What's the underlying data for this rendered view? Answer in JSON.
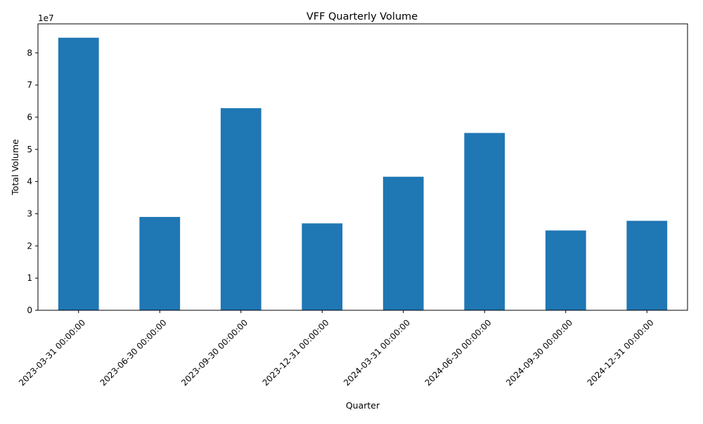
{
  "chart_data": {
    "type": "bar",
    "title": "VFF Quarterly Volume",
    "xlabel": "Quarter",
    "ylabel": "Total Volume",
    "scale_label": "1e7",
    "categories": [
      "2023-03-31 00:00:00",
      "2023-06-30 00:00:00",
      "2023-09-30 00:00:00",
      "2023-12-31 00:00:00",
      "2024-03-31 00:00:00",
      "2024-06-30 00:00:00",
      "2024-09-30 00:00:00",
      "2024-12-31 00:00:00"
    ],
    "values": [
      84700000,
      29000000,
      62800000,
      27000000,
      41500000,
      55100000,
      24800000,
      27800000
    ],
    "ylim": [
      0,
      89000000
    ],
    "yticks": [
      0,
      10000000,
      20000000,
      30000000,
      40000000,
      50000000,
      60000000,
      70000000,
      80000000
    ],
    "ytick_labels": [
      "0",
      "1",
      "2",
      "3",
      "4",
      "5",
      "6",
      "7",
      "8"
    ],
    "bar_color": "#1f77b4",
    "grid": false,
    "legend": "none"
  }
}
